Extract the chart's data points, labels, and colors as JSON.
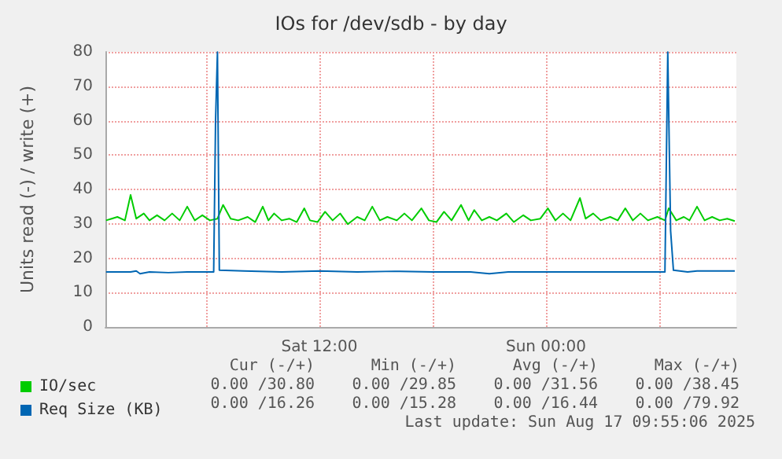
{
  "chart_data": {
    "type": "line",
    "title": "IOs for /dev/sdb - by day",
    "ylabel": "Units read (-) / write (+)",
    "xlim": [
      "2025-08-16T00:40",
      "2025-08-17T10:05"
    ],
    "xticks": [
      {
        "value": "2025-08-16T06:00",
        "label": null
      },
      {
        "value": "2025-08-16T12:00",
        "label": "Sat 12:00"
      },
      {
        "value": "2025-08-16T18:00",
        "label": null
      },
      {
        "value": "2025-08-17T00:00",
        "label": "Sun 00:00"
      },
      {
        "value": "2025-08-17T06:00",
        "label": null
      }
    ],
    "ylim": [
      0,
      80
    ],
    "yticks": [
      0,
      10,
      20,
      30,
      40,
      50,
      60,
      70,
      80
    ],
    "grid": true,
    "legend": "bottom left",
    "marker": "none",
    "line_style": "solid",
    "series": [
      {
        "name": "IO/sec",
        "color": "#00cc00",
        "x": [
          "2025-08-16T00:42",
          "2025-08-16T01:00",
          "2025-08-16T01:18",
          "2025-08-16T01:42",
          "2025-08-16T02:00",
          "2025-08-16T02:18",
          "2025-08-16T02:42",
          "2025-08-16T03:00",
          "2025-08-16T03:24",
          "2025-08-16T03:48",
          "2025-08-16T04:12",
          "2025-08-16T04:36",
          "2025-08-16T05:00",
          "2025-08-16T05:24",
          "2025-08-16T05:48",
          "2025-08-16T06:12",
          "2025-08-16T06:36",
          "2025-08-16T06:54",
          "2025-08-16T07:18",
          "2025-08-16T07:42",
          "2025-08-16T08:12",
          "2025-08-16T08:36",
          "2025-08-16T09:00",
          "2025-08-16T09:18",
          "2025-08-16T09:36",
          "2025-08-16T10:00",
          "2025-08-16T10:24",
          "2025-08-16T10:48",
          "2025-08-16T11:12",
          "2025-08-16T11:30",
          "2025-08-16T11:54",
          "2025-08-16T12:18",
          "2025-08-16T12:42",
          "2025-08-16T13:06",
          "2025-08-16T13:30",
          "2025-08-16T14:00",
          "2025-08-16T14:24",
          "2025-08-16T14:48",
          "2025-08-16T15:12",
          "2025-08-16T15:36",
          "2025-08-16T16:06",
          "2025-08-16T16:30",
          "2025-08-16T16:54",
          "2025-08-16T17:24",
          "2025-08-16T17:48",
          "2025-08-16T18:12",
          "2025-08-16T18:36",
          "2025-08-16T19:00",
          "2025-08-16T19:30",
          "2025-08-16T19:54",
          "2025-08-16T20:12",
          "2025-08-16T20:36",
          "2025-08-16T21:00",
          "2025-08-16T21:24",
          "2025-08-16T21:54",
          "2025-08-16T22:18",
          "2025-08-16T22:48",
          "2025-08-16T23:12",
          "2025-08-16T23:42",
          "2025-08-17T00:06",
          "2025-08-17T00:30",
          "2025-08-17T00:54",
          "2025-08-17T01:18",
          "2025-08-17T01:48",
          "2025-08-17T02:06",
          "2025-08-17T02:30",
          "2025-08-17T02:54",
          "2025-08-17T03:24",
          "2025-08-17T03:48",
          "2025-08-17T04:12",
          "2025-08-17T04:36",
          "2025-08-17T05:00",
          "2025-08-17T05:24",
          "2025-08-17T05:54",
          "2025-08-17T06:18",
          "2025-08-17T06:30",
          "2025-08-17T06:54",
          "2025-08-17T07:18",
          "2025-08-17T07:36",
          "2025-08-17T08:00",
          "2025-08-17T08:24",
          "2025-08-17T08:48",
          "2025-08-17T09:12",
          "2025-08-17T09:36",
          "2025-08-17T10:00"
        ],
        "values": [
          31,
          31.5,
          32,
          31,
          38.4,
          31.5,
          33,
          31,
          32.5,
          31,
          33,
          31,
          35,
          31,
          32.5,
          31,
          31.5,
          35.5,
          31.5,
          31,
          32,
          30.5,
          35,
          31,
          33,
          31,
          31.5,
          30.5,
          34.5,
          31,
          30.5,
          33.5,
          31,
          33,
          29.9,
          32,
          31,
          35,
          31,
          32,
          31,
          33,
          31,
          34.5,
          31,
          30.5,
          33.5,
          31,
          35.5,
          31,
          34,
          31,
          32,
          31,
          33,
          30.5,
          32.5,
          31,
          31.5,
          34.5,
          31,
          33,
          31,
          37.5,
          31.5,
          33,
          31,
          32,
          31,
          34.5,
          31,
          33,
          31,
          32,
          31,
          34.5,
          31,
          32,
          31,
          35,
          31,
          32,
          31,
          31.5,
          30.8
        ]
      },
      {
        "name": "Req Size (KB)",
        "color": "#0066b3",
        "x": [
          "2025-08-16T00:42",
          "2025-08-16T02:00",
          "2025-08-16T02:18",
          "2025-08-16T02:30",
          "2025-08-16T03:00",
          "2025-08-16T04:00",
          "2025-08-16T05:00",
          "2025-08-16T06:24",
          "2025-08-16T06:30",
          "2025-08-16T06:36",
          "2025-08-16T06:42",
          "2025-08-16T08:00",
          "2025-08-16T10:00",
          "2025-08-16T12:00",
          "2025-08-16T14:00",
          "2025-08-16T16:00",
          "2025-08-16T18:00",
          "2025-08-16T20:00",
          "2025-08-16T21:00",
          "2025-08-16T22:00",
          "2025-08-17T00:00",
          "2025-08-17T02:00",
          "2025-08-17T04:00",
          "2025-08-17T06:18",
          "2025-08-17T06:27",
          "2025-08-17T06:36",
          "2025-08-17T06:45",
          "2025-08-17T07:30",
          "2025-08-17T08:00",
          "2025-08-17T10:00"
        ],
        "values": [
          16,
          16,
          16.3,
          15.5,
          16,
          15.8,
          16,
          16,
          60,
          79.92,
          16.5,
          16.3,
          16,
          16.3,
          16,
          16.2,
          16,
          16,
          15.5,
          16,
          16,
          16,
          16,
          16,
          79.92,
          28,
          16.5,
          16,
          16.3,
          16.26
        ]
      }
    ],
    "annotations": [
      "Cur (-/+)",
      "Min (-/+)",
      "Avg (-/+)",
      "Max (-/+)",
      "0.00 /30.80",
      "0.00 /29.85",
      "0.00 /31.56",
      "0.00 /38.45",
      "0.00 /16.26",
      "0.00 /15.28",
      "0.00 /16.44",
      "0.00 /79.92",
      "Last update: Sun Aug 17 09:55:06 2025"
    ]
  }
}
